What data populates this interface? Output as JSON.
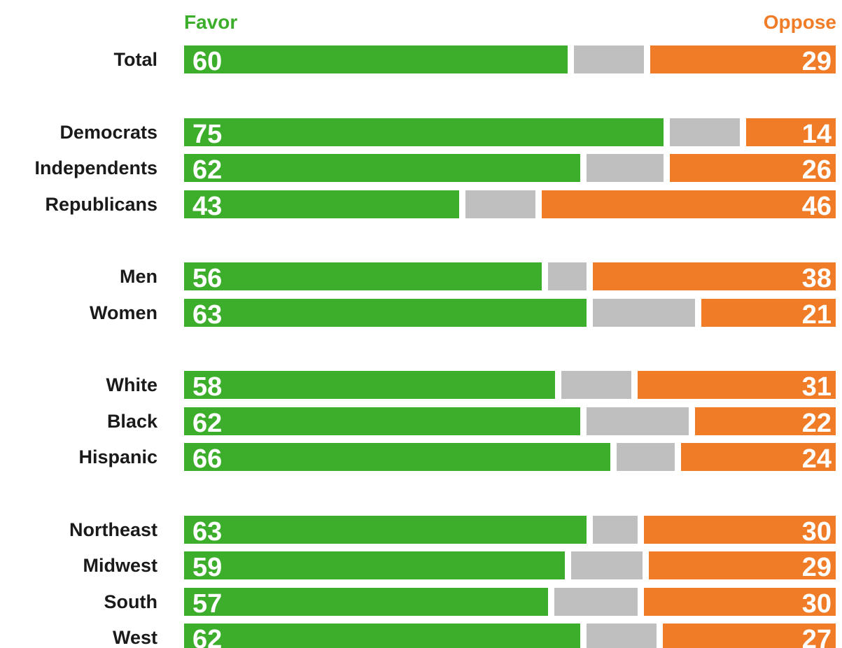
{
  "headers": {
    "favor": "Favor",
    "oppose": "Oppose"
  },
  "colors": {
    "favor": "#3dae2b",
    "neither": "#bfbfbf",
    "oppose": "#f07c28",
    "favor_text": "#3dae2b",
    "oppose_text": "#f07c28"
  },
  "chart_data": {
    "type": "bar",
    "orientation": "horizontal",
    "stacked": true,
    "categories": [
      "Total",
      "Democrats",
      "Independents",
      "Republicans",
      "Men",
      "Women",
      "White",
      "Black",
      "Hispanic",
      "Northeast",
      "Midwest",
      "South",
      "West"
    ],
    "groups": [
      [
        "Total"
      ],
      [
        "Democrats",
        "Independents",
        "Republicans"
      ],
      [
        "Men",
        "Women"
      ],
      [
        "White",
        "Black",
        "Hispanic"
      ],
      [
        "Northeast",
        "Midwest",
        "South",
        "West"
      ]
    ],
    "series": [
      {
        "name": "Favor",
        "values": [
          60,
          75,
          62,
          43,
          56,
          63,
          58,
          62,
          66,
          63,
          59,
          57,
          62
        ]
      },
      {
        "values": [
          11,
          11,
          12,
          11,
          6,
          16,
          11,
          16,
          9,
          7,
          11,
          13,
          11
        ]
      },
      {
        "name": "Oppose",
        "values": [
          29,
          14,
          26,
          46,
          38,
          21,
          31,
          22,
          24,
          30,
          29,
          30,
          27
        ]
      }
    ],
    "xlim": [
      0,
      100
    ]
  }
}
